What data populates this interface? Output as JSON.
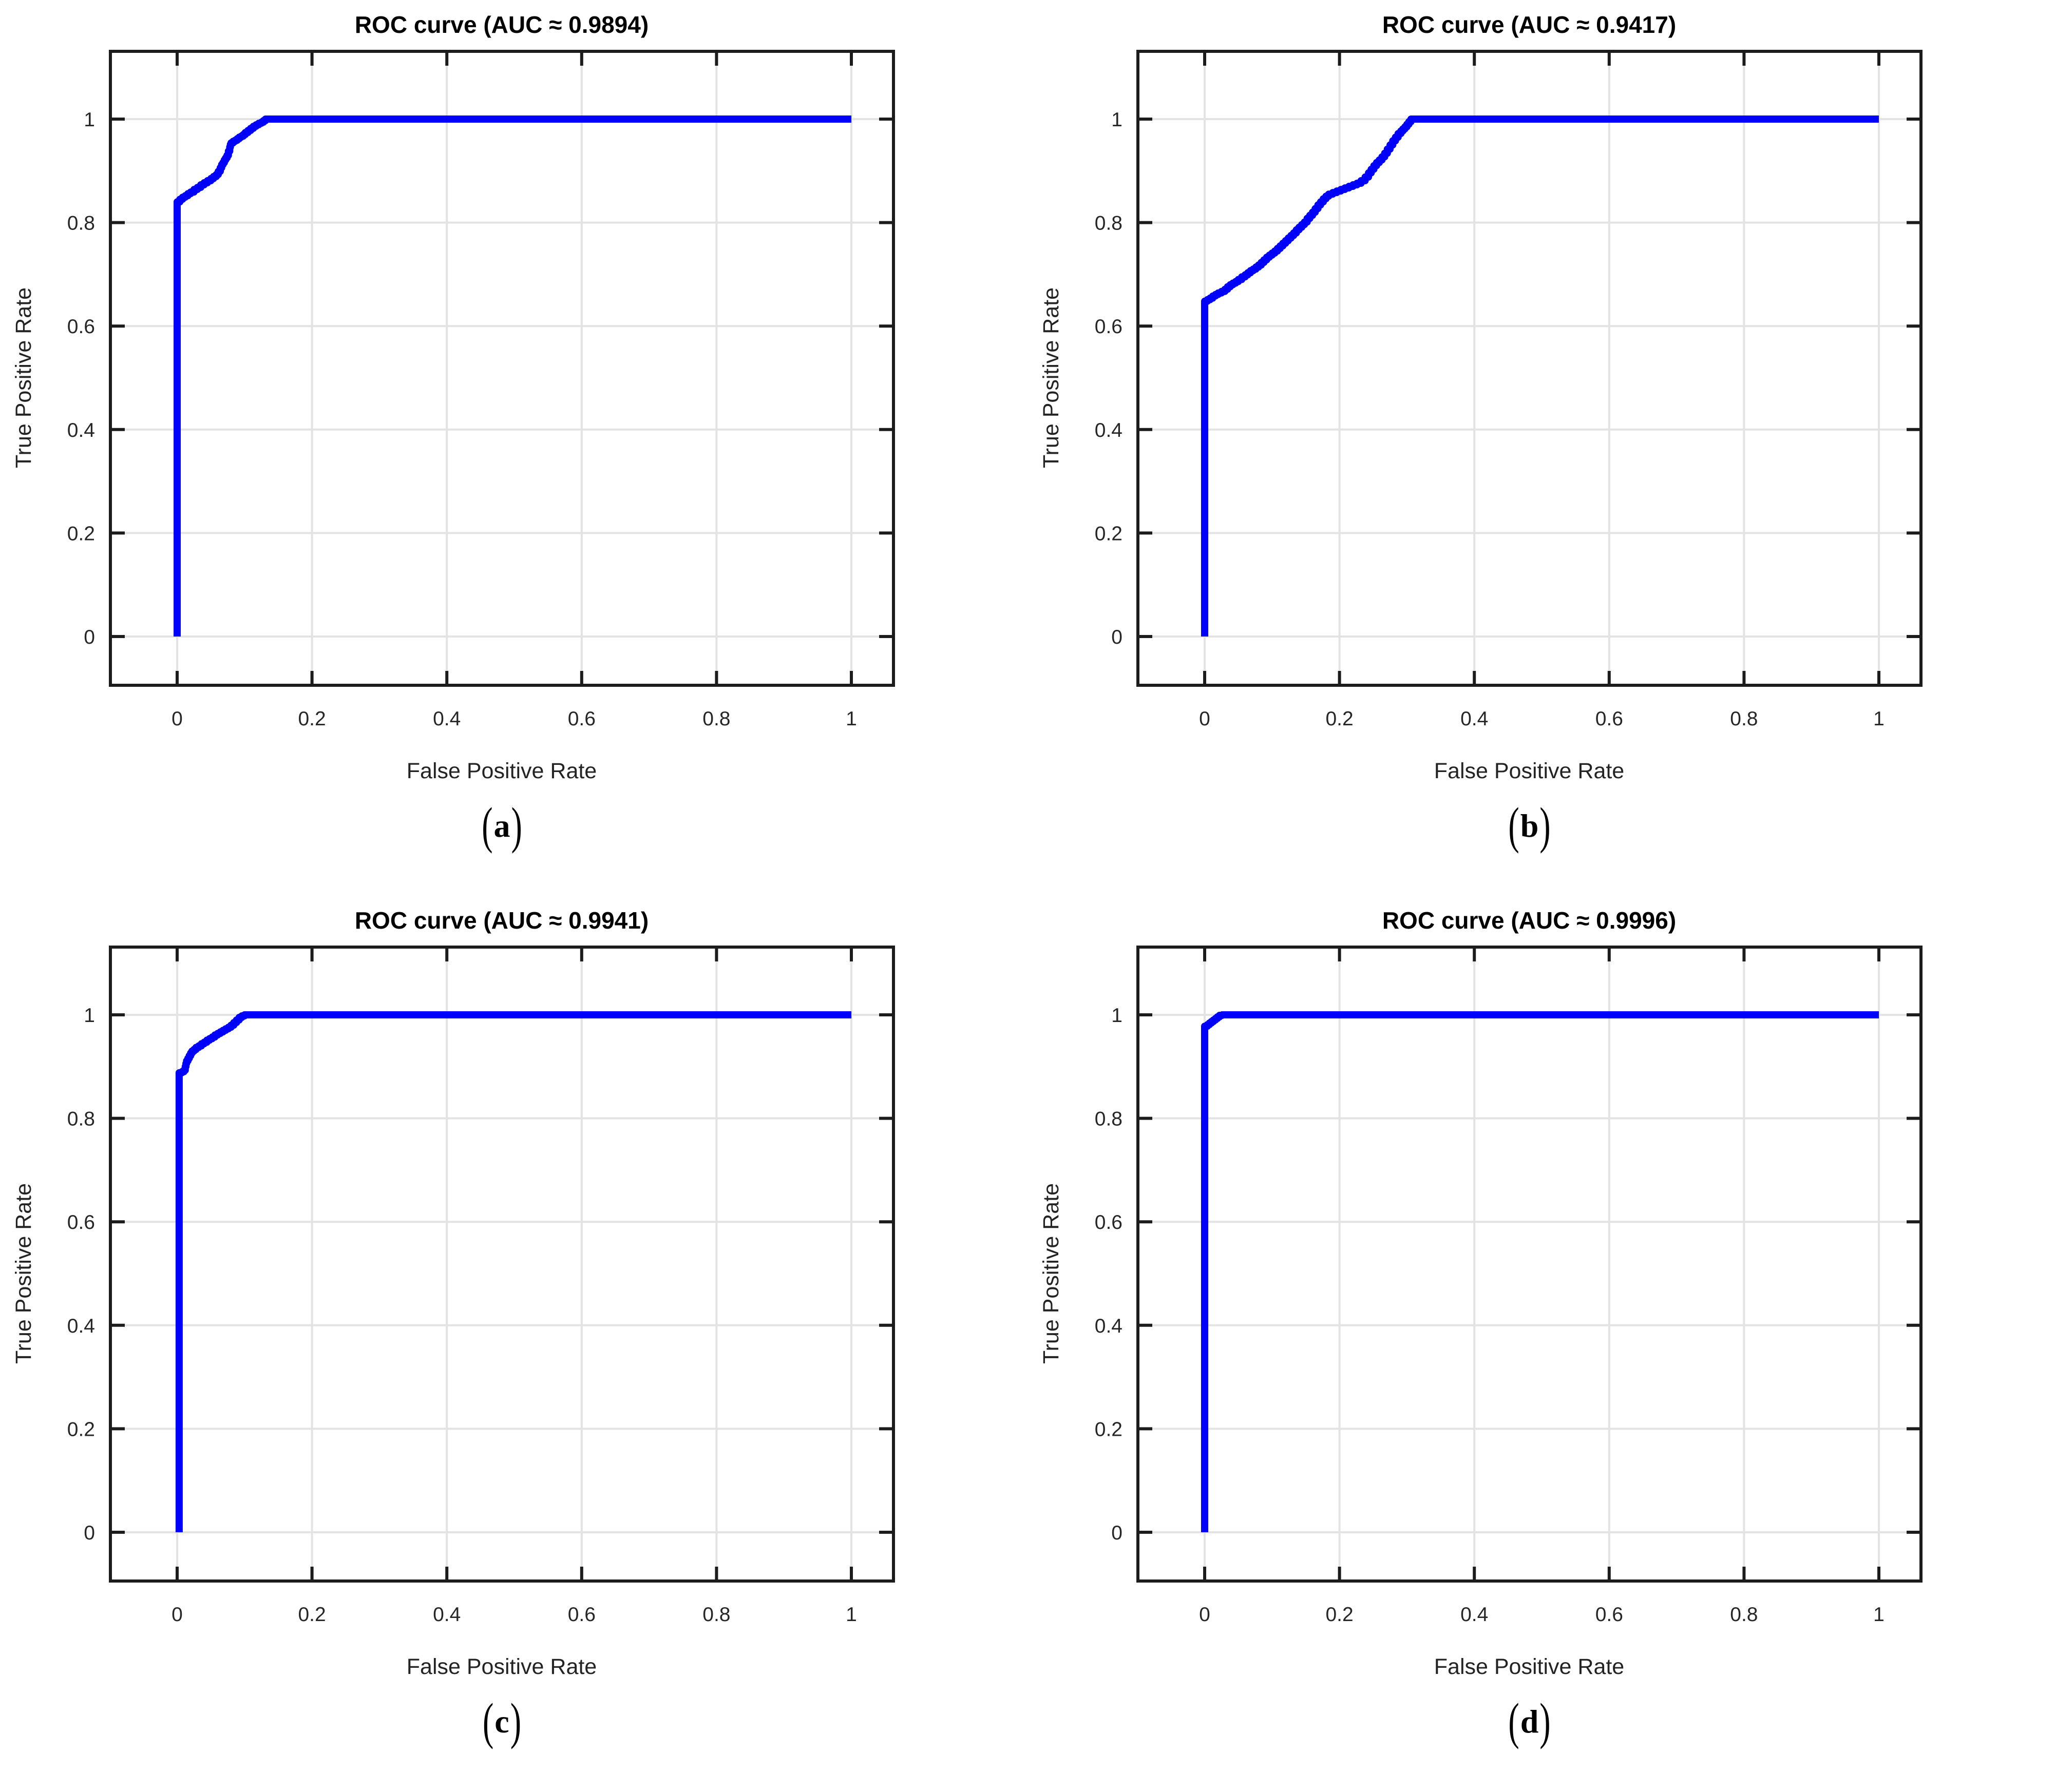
{
  "style": {
    "curve_color": "#0000ff",
    "grid_color": "#e3e3e3",
    "axis_color": "#1c1c1c",
    "tick_label_color": "#262626",
    "background": "#ffffff"
  },
  "axis_ticks": {
    "values": [
      0,
      0.2,
      0.4,
      0.6,
      0.8,
      1
    ],
    "labels": [
      "0",
      "0.2",
      "0.4",
      "0.6",
      "0.8",
      "1"
    ]
  },
  "chart_data": [
    {
      "type": "line",
      "title": "ROC curve (AUC ≈ 0.9894)",
      "auc": 0.9894,
      "caption": "(a)",
      "xlabel": "False Positive Rate",
      "ylabel": "True Positive Rate",
      "xlim": [
        -0.09,
        1.07
      ],
      "ylim": [
        -0.095,
        1.13
      ],
      "grid": true,
      "series": [
        {
          "name": "ROC",
          "points": [
            [
              0,
              0
            ],
            [
              0,
              0.835
            ],
            [
              0.004,
              0.84
            ],
            [
              0.008,
              0.845
            ],
            [
              0.012,
              0.849
            ],
            [
              0.016,
              0.852
            ],
            [
              0.02,
              0.856
            ],
            [
              0.025,
              0.859
            ],
            [
              0.03,
              0.864
            ],
            [
              0.035,
              0.868
            ],
            [
              0.04,
              0.873
            ],
            [
              0.045,
              0.877
            ],
            [
              0.05,
              0.881
            ],
            [
              0.054,
              0.885
            ],
            [
              0.058,
              0.889
            ],
            [
              0.061,
              0.893
            ],
            [
              0.064,
              0.899
            ],
            [
              0.066,
              0.906
            ],
            [
              0.068,
              0.912
            ],
            [
              0.07,
              0.916
            ],
            [
              0.072,
              0.921
            ],
            [
              0.074,
              0.925
            ],
            [
              0.076,
              0.93
            ],
            [
              0.078,
              0.938
            ],
            [
              0.079,
              0.946
            ],
            [
              0.08,
              0.951
            ],
            [
              0.083,
              0.954
            ],
            [
              0.086,
              0.957
            ],
            [
              0.089,
              0.959
            ],
            [
              0.092,
              0.962
            ],
            [
              0.095,
              0.965
            ],
            [
              0.098,
              0.967
            ],
            [
              0.101,
              0.97
            ],
            [
              0.105,
              0.974
            ],
            [
              0.109,
              0.978
            ],
            [
              0.113,
              0.982
            ],
            [
              0.117,
              0.986
            ],
            [
              0.121,
              0.989
            ],
            [
              0.125,
              0.992
            ],
            [
              0.128,
              0.994
            ],
            [
              0.131,
              0.997
            ],
            [
              0.134,
              1
            ],
            [
              1,
              1
            ]
          ]
        }
      ]
    },
    {
      "type": "line",
      "title": "ROC curve (AUC ≈ 0.9417)",
      "auc": 0.9417,
      "caption": "(b)",
      "xlabel": "False Positive Rate",
      "ylabel": "True Positive Rate",
      "xlim": [
        -0.09,
        1.07
      ],
      "ylim": [
        -0.095,
        1.13
      ],
      "grid": true,
      "series": [
        {
          "name": "ROC",
          "points": [
            [
              0,
              0
            ],
            [
              0,
              0.643
            ],
            [
              0.004,
              0.648
            ],
            [
              0.008,
              0.651
            ],
            [
              0.012,
              0.654
            ],
            [
              0.016,
              0.658
            ],
            [
              0.02,
              0.661
            ],
            [
              0.025,
              0.664
            ],
            [
              0.03,
              0.667
            ],
            [
              0.034,
              0.671
            ],
            [
              0.038,
              0.676
            ],
            [
              0.042,
              0.68
            ],
            [
              0.046,
              0.683
            ],
            [
              0.05,
              0.686
            ],
            [
              0.055,
              0.69
            ],
            [
              0.06,
              0.695
            ],
            [
              0.064,
              0.699
            ],
            [
              0.068,
              0.703
            ],
            [
              0.072,
              0.707
            ],
            [
              0.076,
              0.71
            ],
            [
              0.08,
              0.714
            ],
            [
              0.084,
              0.718
            ],
            [
              0.088,
              0.723
            ],
            [
              0.092,
              0.728
            ],
            [
              0.096,
              0.733
            ],
            [
              0.1,
              0.737
            ],
            [
              0.104,
              0.741
            ],
            [
              0.108,
              0.745
            ],
            [
              0.112,
              0.75
            ],
            [
              0.116,
              0.755
            ],
            [
              0.12,
              0.76
            ],
            [
              0.124,
              0.765
            ],
            [
              0.128,
              0.77
            ],
            [
              0.132,
              0.775
            ],
            [
              0.136,
              0.78
            ],
            [
              0.14,
              0.786
            ],
            [
              0.144,
              0.791
            ],
            [
              0.148,
              0.796
            ],
            [
              0.152,
              0.801
            ],
            [
              0.156,
              0.808
            ],
            [
              0.16,
              0.814
            ],
            [
              0.164,
              0.82
            ],
            [
              0.168,
              0.827
            ],
            [
              0.172,
              0.834
            ],
            [
              0.176,
              0.84
            ],
            [
              0.18,
              0.846
            ],
            [
              0.184,
              0.851
            ],
            [
              0.19,
              0.855
            ],
            [
              0.196,
              0.858
            ],
            [
              0.202,
              0.861
            ],
            [
              0.208,
              0.864
            ],
            [
              0.214,
              0.867
            ],
            [
              0.22,
              0.87
            ],
            [
              0.226,
              0.873
            ],
            [
              0.232,
              0.876
            ],
            [
              0.238,
              0.881
            ],
            [
              0.243,
              0.888
            ],
            [
              0.247,
              0.896
            ],
            [
              0.251,
              0.903
            ],
            [
              0.255,
              0.91
            ],
            [
              0.259,
              0.916
            ],
            [
              0.263,
              0.921
            ],
            [
              0.267,
              0.927
            ],
            [
              0.271,
              0.934
            ],
            [
              0.275,
              0.942
            ],
            [
              0.279,
              0.95
            ],
            [
              0.283,
              0.958
            ],
            [
              0.287,
              0.965
            ],
            [
              0.291,
              0.972
            ],
            [
              0.294,
              0.977
            ],
            [
              0.297,
              0.981
            ],
            [
              0.3,
              0.985
            ],
            [
              0.303,
              0.99
            ],
            [
              0.306,
              0.995
            ],
            [
              0.31,
              1
            ],
            [
              1,
              1
            ]
          ]
        }
      ]
    },
    {
      "type": "line",
      "title": "ROC curve (AUC ≈ 0.9941)",
      "auc": 0.9941,
      "caption": "(c)",
      "xlabel": "False Positive Rate",
      "ylabel": "True Positive Rate",
      "xlim": [
        -0.09,
        1.07
      ],
      "ylim": [
        -0.095,
        1.13
      ],
      "grid": true,
      "series": [
        {
          "name": "ROC",
          "points": [
            [
              0.003,
              0
            ],
            [
              0.003,
              0.885
            ],
            [
              0.007,
              0.888
            ],
            [
              0.01,
              0.89
            ],
            [
              0.012,
              0.893
            ],
            [
              0.013,
              0.9
            ],
            [
              0.014,
              0.906
            ],
            [
              0.016,
              0.911
            ],
            [
              0.018,
              0.916
            ],
            [
              0.02,
              0.921
            ],
            [
              0.022,
              0.926
            ],
            [
              0.025,
              0.93
            ],
            [
              0.028,
              0.933
            ],
            [
              0.032,
              0.937
            ],
            [
              0.036,
              0.94
            ],
            [
              0.04,
              0.944
            ],
            [
              0.044,
              0.947
            ],
            [
              0.048,
              0.951
            ],
            [
              0.052,
              0.954
            ],
            [
              0.056,
              0.957
            ],
            [
              0.06,
              0.961
            ],
            [
              0.064,
              0.964
            ],
            [
              0.068,
              0.967
            ],
            [
              0.072,
              0.97
            ],
            [
              0.076,
              0.973
            ],
            [
              0.08,
              0.976
            ],
            [
              0.084,
              0.98
            ],
            [
              0.088,
              0.985
            ],
            [
              0.092,
              0.99
            ],
            [
              0.096,
              0.995
            ],
            [
              0.1,
              0.998
            ],
            [
              0.103,
              1
            ],
            [
              1,
              1
            ]
          ]
        }
      ]
    },
    {
      "type": "line",
      "title": "ROC curve (AUC ≈ 0.9996)",
      "auc": 0.9996,
      "caption": "(d)",
      "xlabel": "False Positive Rate",
      "ylabel": "True Positive Rate",
      "xlim": [
        -0.09,
        1.07
      ],
      "ylim": [
        -0.095,
        1.13
      ],
      "grid": true,
      "series": [
        {
          "name": "ROC",
          "points": [
            [
              0,
              0
            ],
            [
              0,
              0.975
            ],
            [
              0.004,
              0.978
            ],
            [
              0.007,
              0.981
            ],
            [
              0.01,
              0.984
            ],
            [
              0.013,
              0.987
            ],
            [
              0.016,
              0.99
            ],
            [
              0.019,
              0.993
            ],
            [
              0.022,
              0.996
            ],
            [
              0.026,
              0.999
            ],
            [
              0.03,
              1
            ],
            [
              1,
              1
            ]
          ]
        }
      ]
    }
  ]
}
